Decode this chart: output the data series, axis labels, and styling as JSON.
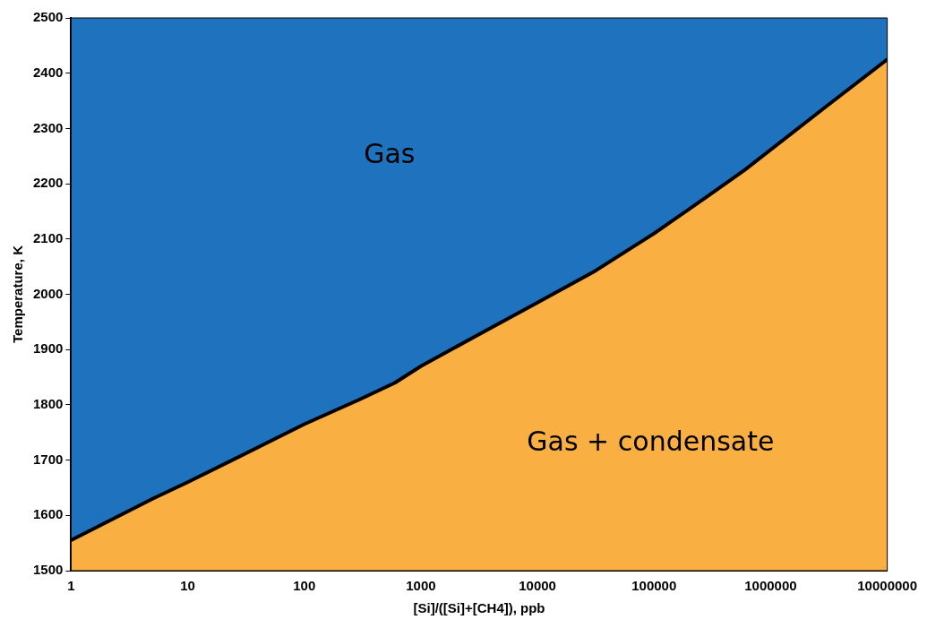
{
  "chart_data": {
    "type": "area",
    "xlabel": "[Si]/([Si]+[CH4]), ppb",
    "ylabel": "Temperature, K",
    "log": "x",
    "xlim": [
      1,
      10000000
    ],
    "xticks": [
      1,
      10,
      100,
      1000,
      10000,
      100000,
      1000000,
      10000000
    ],
    "ylim": [
      1500,
      2500
    ],
    "yticks": [
      1500,
      1600,
      1700,
      1800,
      1900,
      2000,
      2100,
      2200,
      2300,
      2400,
      2500
    ],
    "grid": false,
    "legend": false,
    "annotations": [
      "Gas",
      "Gas + condensate"
    ],
    "bands": [
      {
        "axis": "y",
        "from": 1500,
        "to": 2500,
        "color": "#1f72bd"
      }
    ],
    "series": [
      {
        "color": "#f9af41",
        "x": [
          1,
          5,
          10,
          30,
          100,
          300,
          600,
          1000,
          3000,
          10000,
          30000,
          100000,
          300000,
          600000,
          3000000,
          10000000
        ],
        "values": [
          1555,
          1630,
          1660,
          1710,
          1765,
          1810,
          1840,
          1870,
          1925,
          1985,
          2040,
          2110,
          2180,
          2225,
          2340,
          2425
        ]
      }
    ]
  }
}
